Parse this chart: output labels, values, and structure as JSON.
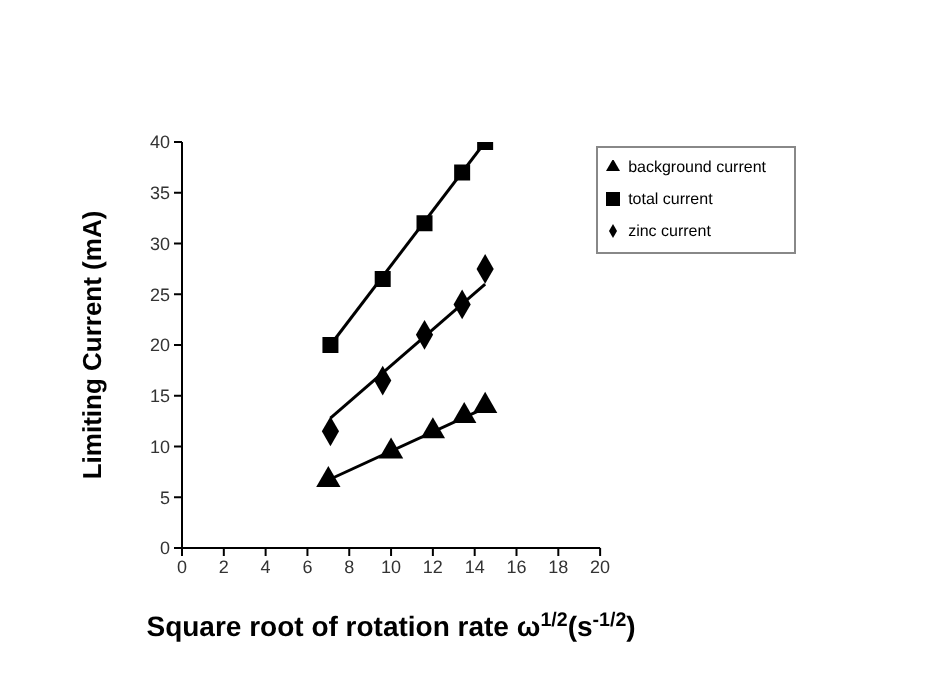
{
  "chart_data": {
    "type": "scatter",
    "xlabel": "Square root of rotation rate ω$^{1/2}$(s$^{-1/2}$)",
    "ylabel": "Limiting Current (mA)",
    "xlim": [
      0,
      20
    ],
    "xticks": [
      0,
      2,
      4,
      6,
      8,
      10,
      12,
      14,
      16,
      18,
      20
    ],
    "ylim": [
      0,
      40
    ],
    "yticks": [
      0,
      5,
      10,
      15,
      20,
      25,
      30,
      35,
      40
    ],
    "grid": false,
    "legend": "top right",
    "series": [
      {
        "name": "background current",
        "color": "#000000",
        "marker": "triangle",
        "x": [
          7.0,
          10.0,
          12.0,
          13.5,
          14.5
        ],
        "values": [
          6.7,
          9.5,
          11.5,
          13.0,
          14.0
        ]
      },
      {
        "name": "total current",
        "color": "#000000",
        "marker": "square",
        "x": [
          7.1,
          9.6,
          11.6,
          13.4,
          14.5
        ],
        "values": [
          20.0,
          26.5,
          32.0,
          37.0,
          40.0
        ]
      },
      {
        "name": "zinc current",
        "color": "#000000",
        "marker": "diamond",
        "x": [
          7.1,
          9.6,
          11.6,
          13.4,
          14.5
        ],
        "values": [
          11.5,
          16.5,
          21.0,
          24.0,
          27.5
        ]
      },
      {
        "type": "line",
        "color": "#000000",
        "marker": "none",
        "x": [
          7.0,
          14.5
        ],
        "values": [
          6.7,
          13.8
        ]
      },
      {
        "type": "line",
        "color": "#000000",
        "marker": "none",
        "x": [
          7.1,
          14.5
        ],
        "values": [
          20.0,
          40.0
        ]
      },
      {
        "type": "line",
        "color": "#000000",
        "marker": "none",
        "x": [
          7.1,
          14.5
        ],
        "values": [
          12.8,
          26.0
        ]
      }
    ]
  }
}
